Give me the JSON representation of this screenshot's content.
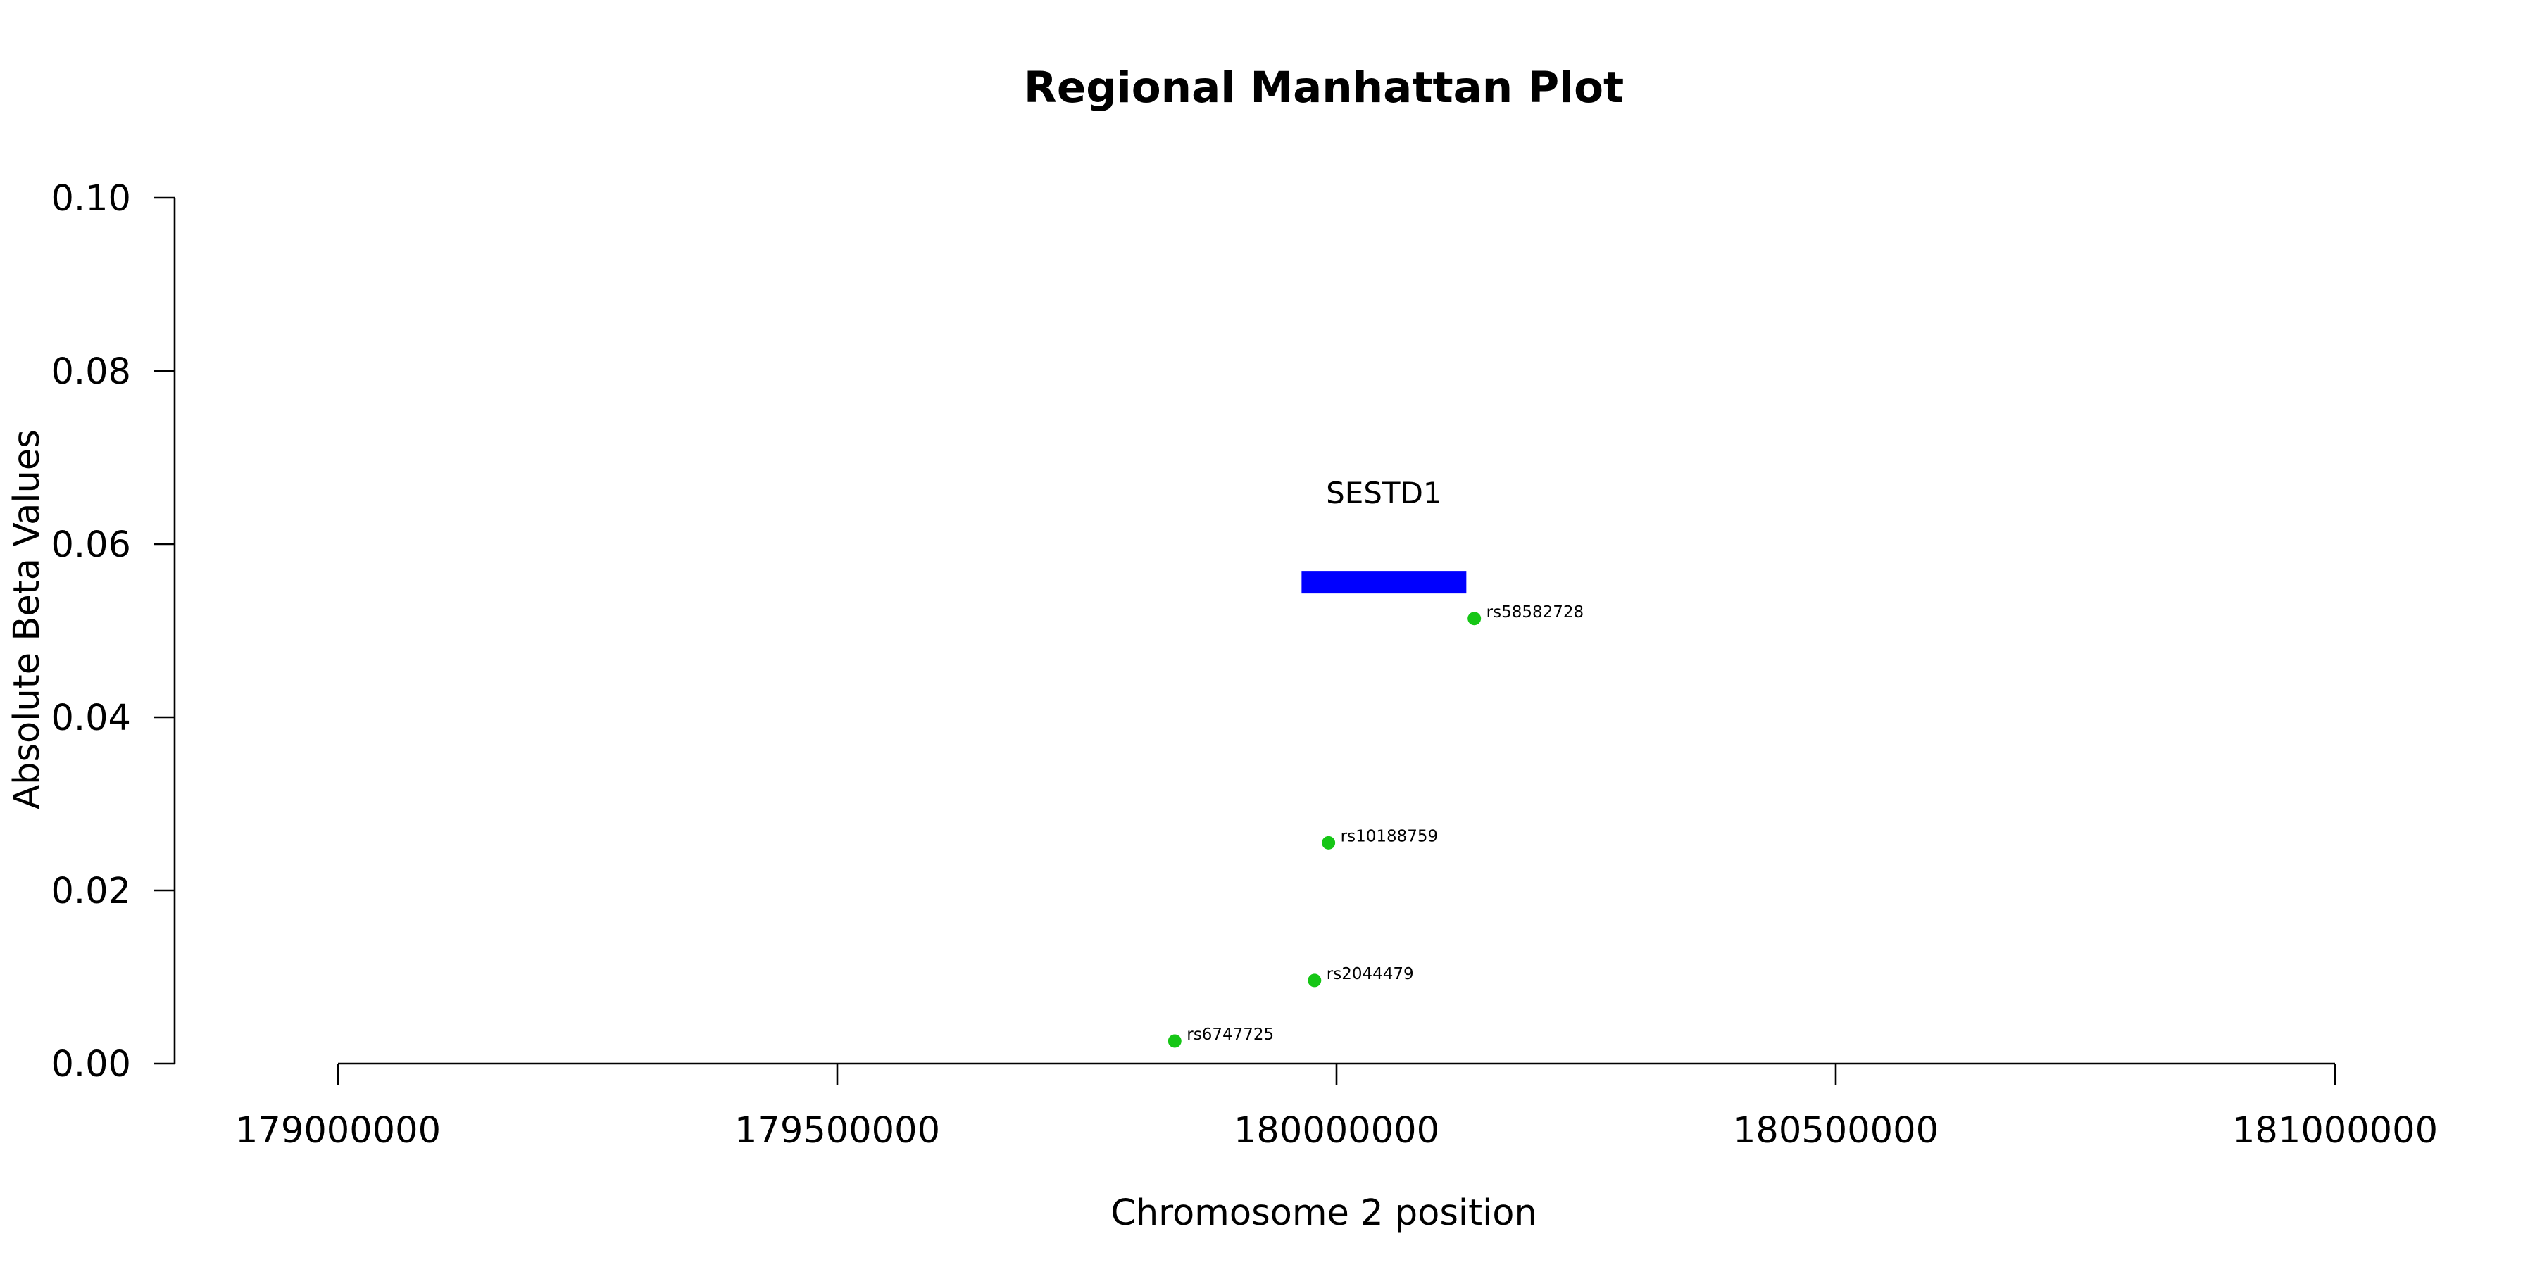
{
  "chart_data": {
    "type": "scatter",
    "title": "Regional Manhattan Plot",
    "xlabel": "Chromosome 2 position",
    "ylabel": "Absolute Beta Values",
    "xlim": [
      179000000,
      181000000
    ],
    "ylim": [
      0,
      0.1
    ],
    "x_ticks": [
      179000000,
      179500000,
      180000000,
      180500000,
      181000000
    ],
    "y_ticks": [
      0.0,
      0.02,
      0.04,
      0.06,
      0.08,
      0.1
    ],
    "x_tick_labels": [
      "179000000",
      "179500000",
      "180000000",
      "180500000",
      "181000000"
    ],
    "y_tick_labels": [
      "0.00",
      "0.02",
      "0.04",
      "0.06",
      "0.08",
      "0.10"
    ],
    "grid": false,
    "point_color": "#16c616",
    "points": [
      {
        "label": "rs58582728",
        "x": 180138000,
        "y": 0.0514
      },
      {
        "label": "rs10188759",
        "x": 179992000,
        "y": 0.0255
      },
      {
        "label": "rs2044479",
        "x": 179978000,
        "y": 0.0096
      },
      {
        "label": "rs6747725",
        "x": 179838000,
        "y": 0.0026
      }
    ],
    "gene": {
      "name": "SESTD1",
      "start": 179965000,
      "end": 180130000,
      "y": 0.0556,
      "color": "#0000ff"
    }
  }
}
